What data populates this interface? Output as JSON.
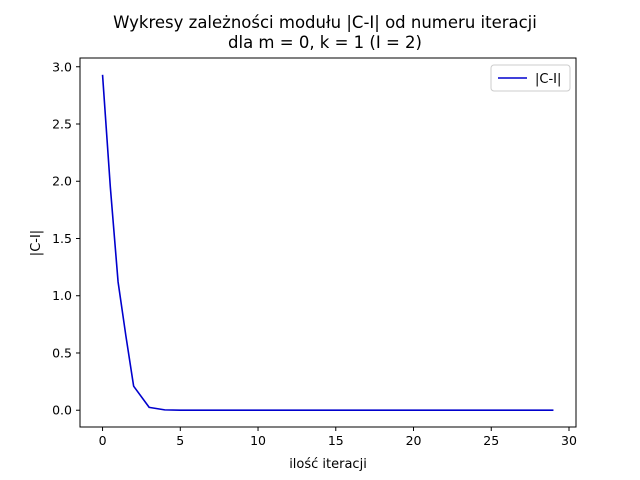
{
  "chart_data": {
    "type": "line",
    "title_line1": "Wykresy zależności modułu |C-I| od numeru iteracji",
    "title_line2": "dla m = 0, k = 1 (I = 2)",
    "xlabel": "ilość iteracji",
    "ylabel": "|C-I|",
    "xlim": [
      -1.45,
      30.45
    ],
    "ylim": [
      -0.1465,
      3.0765
    ],
    "xticks": [
      0,
      5,
      10,
      15,
      20,
      25,
      30
    ],
    "xtick_labels": [
      "0",
      "5",
      "10",
      "15",
      "20",
      "25",
      "30"
    ],
    "yticks": [
      0.0,
      0.5,
      1.0,
      1.5,
      2.0,
      2.5,
      3.0
    ],
    "ytick_labels": [
      "0.0",
      "0.5",
      "1.0",
      "1.5",
      "2.0",
      "2.5",
      "3.0"
    ],
    "grid": false,
    "legend_position": "upper right",
    "series": [
      {
        "name": "|C-I|",
        "color": "#0000cd",
        "x": [
          0,
          0.5,
          1,
          1.5,
          2,
          3,
          4,
          5,
          6,
          7,
          8,
          9,
          10,
          11,
          12,
          13,
          14,
          15,
          16,
          17,
          18,
          19,
          20,
          21,
          22,
          23,
          24,
          25,
          26,
          27,
          28,
          29
        ],
        "y": [
          2.93,
          1.95,
          1.12,
          0.65,
          0.21,
          0.025,
          0.003,
          0.0,
          0.0,
          0.0,
          0.0,
          0.0,
          0.0,
          0.0,
          0.0,
          0.0,
          0.0,
          0.0,
          0.0,
          0.0,
          0.0,
          0.0,
          0.0,
          0.0,
          0.0,
          0.0,
          0.0,
          0.0,
          0.0,
          0.0,
          0.0,
          0.0
        ]
      }
    ]
  }
}
